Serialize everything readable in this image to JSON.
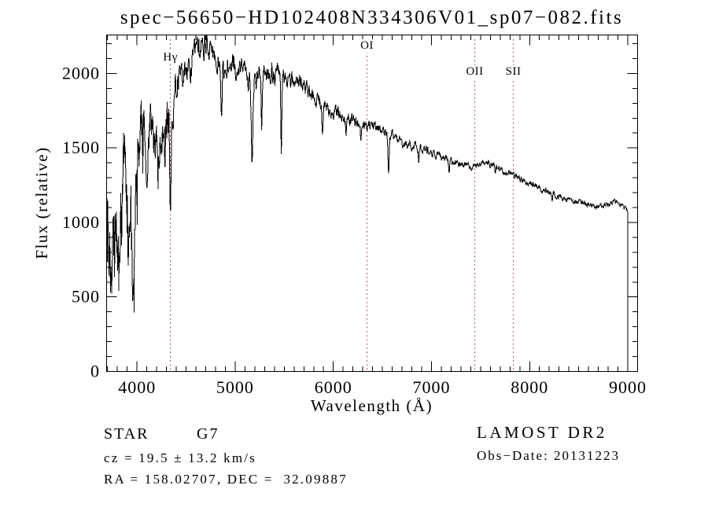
{
  "title": "spec−56650−HD102408N334306V01_sp07−082.fits",
  "axes": {
    "xlabel": "Wavelength (Å)",
    "ylabel": "Flux (relative)",
    "x_ticks": [
      4000,
      5000,
      6000,
      7000,
      8000,
      9000
    ],
    "y_ticks": [
      0,
      500,
      1000,
      1500,
      2000
    ]
  },
  "spectral_lines": [
    {
      "label": "Hγ",
      "wavelength": 4340
    },
    {
      "label": "OI",
      "wavelength": 6343
    },
    {
      "label": "OII",
      "wavelength": 7441
    },
    {
      "label": "SII",
      "wavelength": 7834
    }
  ],
  "footer": {
    "class_label": "STAR",
    "subclass": "G7",
    "cz": "cz = 19.5 ± 13.2 km/s",
    "radec": "RA = 158.02707, DEC =  32.09887",
    "survey": "LAMOST DR2",
    "obs_date": "Obs−Date: 20131223"
  },
  "colors": {
    "spectrum": "#000000",
    "marker_line": "#9e2b25",
    "frame": "#000000",
    "background": "#ffffff",
    "text": "#000000"
  },
  "chart_data": {
    "type": "line",
    "title": "spec−56650−HD102408N334306V01_sp07−082.fits",
    "xlabel": "Wavelength (Å)",
    "ylabel": "Flux (relative)",
    "xlim": [
      3690,
      9100
    ],
    "ylim": [
      0,
      2258
    ],
    "x_ticks": [
      4000,
      5000,
      6000,
      7000,
      8000,
      9000
    ],
    "y_ticks": [
      0,
      500,
      1000,
      1500,
      2000
    ],
    "minor_tick_step_x": 100,
    "minor_tick_step_y": 100,
    "grid": false,
    "mirrored_inward_ticks": true,
    "spectral_line_markers": [
      {
        "label": "Hγ",
        "wavelength": 4340
      },
      {
        "label": "OI",
        "wavelength": 6343
      },
      {
        "label": "OII",
        "wavelength": 7441
      },
      {
        "label": "SII",
        "wavelength": 7834
      }
    ],
    "series": [
      {
        "name": "spectrum",
        "sample_step": 4,
        "cutoff_wavelength": 9000,
        "cutoff_floor_flux": 25,
        "continuum_points": [
          [
            3700,
            950
          ],
          [
            3720,
            880
          ],
          [
            3750,
            840
          ],
          [
            3790,
            790
          ],
          [
            3820,
            720
          ],
          [
            3845,
            1150
          ],
          [
            3870,
            1380
          ],
          [
            3890,
            1320
          ],
          [
            3912,
            880
          ],
          [
            3922,
            770
          ],
          [
            3935,
            1380
          ],
          [
            3952,
            520
          ],
          [
            3968,
            680
          ],
          [
            3985,
            1230
          ],
          [
            4005,
            1400
          ],
          [
            4030,
            1550
          ],
          [
            4060,
            1630
          ],
          [
            4100,
            1480
          ],
          [
            4130,
            1650
          ],
          [
            4180,
            1630
          ],
          [
            4230,
            1570
          ],
          [
            4270,
            1680
          ],
          [
            4310,
            1700
          ],
          [
            4360,
            1780
          ],
          [
            4400,
            1950
          ],
          [
            4450,
            1980
          ],
          [
            4500,
            2030
          ],
          [
            4550,
            2070
          ],
          [
            4600,
            2120
          ],
          [
            4650,
            2160
          ],
          [
            4700,
            2180
          ],
          [
            4750,
            2160
          ],
          [
            4800,
            2130
          ],
          [
            4850,
            2060
          ],
          [
            4900,
            2010
          ],
          [
            4950,
            2050
          ],
          [
            5000,
            2040
          ],
          [
            5050,
            2010
          ],
          [
            5100,
            1990
          ],
          [
            5150,
            1930
          ],
          [
            5200,
            1960
          ],
          [
            5250,
            1990
          ],
          [
            5300,
            2000
          ],
          [
            5350,
            2020
          ],
          [
            5400,
            2000
          ],
          [
            5450,
            1990
          ],
          [
            5500,
            1975
          ],
          [
            5550,
            1955
          ],
          [
            5600,
            1935
          ],
          [
            5650,
            1950
          ],
          [
            5700,
            1910
          ],
          [
            5750,
            1870
          ],
          [
            5800,
            1830
          ],
          [
            5850,
            1810
          ],
          [
            5900,
            1795
          ],
          [
            5950,
            1770
          ],
          [
            6000,
            1740
          ],
          [
            6050,
            1725
          ],
          [
            6100,
            1705
          ],
          [
            6150,
            1695
          ],
          [
            6200,
            1685
          ],
          [
            6250,
            1675
          ],
          [
            6300,
            1665
          ],
          [
            6350,
            1645
          ],
          [
            6400,
            1650
          ],
          [
            6450,
            1630
          ],
          [
            6500,
            1615
          ],
          [
            6550,
            1590
          ],
          [
            6600,
            1575
          ],
          [
            6650,
            1555
          ],
          [
            6700,
            1535
          ],
          [
            6750,
            1525
          ],
          [
            6800,
            1515
          ],
          [
            6850,
            1505
          ],
          [
            6900,
            1495
          ],
          [
            6950,
            1485
          ],
          [
            7000,
            1475
          ],
          [
            7100,
            1445
          ],
          [
            7200,
            1415
          ],
          [
            7300,
            1395
          ],
          [
            7400,
            1378
          ],
          [
            7480,
            1382
          ],
          [
            7560,
            1405
          ],
          [
            7620,
            1385
          ],
          [
            7700,
            1355
          ],
          [
            7800,
            1325
          ],
          [
            7900,
            1295
          ],
          [
            8000,
            1262
          ],
          [
            8100,
            1232
          ],
          [
            8200,
            1202
          ],
          [
            8300,
            1178
          ],
          [
            8400,
            1152
          ],
          [
            8500,
            1136
          ],
          [
            8600,
            1120
          ],
          [
            8700,
            1112
          ],
          [
            8760,
            1118
          ],
          [
            8820,
            1130
          ],
          [
            8870,
            1142
          ],
          [
            8920,
            1120
          ],
          [
            8960,
            1098
          ],
          [
            9000,
            1082
          ]
        ],
        "absorption_features": [
          {
            "center": 4101,
            "floor": 1230,
            "sigma": 8
          },
          {
            "center": 4227,
            "floor": 1360,
            "sigma": 5
          },
          {
            "center": 4340,
            "floor": 1060,
            "sigma": 7
          },
          {
            "center": 4861,
            "floor": 1710,
            "sigma": 7
          },
          {
            "center": 5172,
            "floor": 1390,
            "sigma": 8
          },
          {
            "center": 5270,
            "floor": 1620,
            "sigma": 5
          },
          {
            "center": 5470,
            "floor": 1460,
            "sigma": 5
          },
          {
            "center": 5890,
            "floor": 1590,
            "sigma": 6
          },
          {
            "center": 6130,
            "floor": 1580,
            "sigma": 4
          },
          {
            "center": 6280,
            "floor": 1540,
            "sigma": 4
          },
          {
            "center": 6563,
            "floor": 1325,
            "sigma": 6
          },
          {
            "center": 6870,
            "floor": 1400,
            "sigma": 5
          },
          {
            "center": 7180,
            "floor": 1330,
            "sigma": 5
          },
          {
            "center": 7650,
            "floor": 1330,
            "sigma": 5
          },
          {
            "center": 8230,
            "floor": 1140,
            "sigma": 4
          }
        ],
        "noise_profile": [
          [
            3700,
            360
          ],
          [
            3780,
            320
          ],
          [
            3860,
            280
          ],
          [
            3940,
            230
          ],
          [
            4000,
            175
          ],
          [
            4150,
            150
          ],
          [
            4300,
            135
          ],
          [
            4450,
            100
          ],
          [
            4600,
            80
          ],
          [
            4800,
            72
          ],
          [
            5000,
            68
          ],
          [
            5250,
            62
          ],
          [
            5500,
            55
          ],
          [
            5750,
            48
          ],
          [
            6000,
            42
          ],
          [
            6250,
            36
          ],
          [
            6500,
            30
          ],
          [
            6750,
            27
          ],
          [
            7000,
            24
          ],
          [
            7250,
            22
          ],
          [
            7500,
            20
          ],
          [
            7750,
            19
          ],
          [
            8000,
            18
          ],
          [
            8250,
            17
          ],
          [
            8500,
            16
          ],
          [
            8750,
            15
          ],
          [
            9000,
            14
          ]
        ]
      }
    ]
  }
}
